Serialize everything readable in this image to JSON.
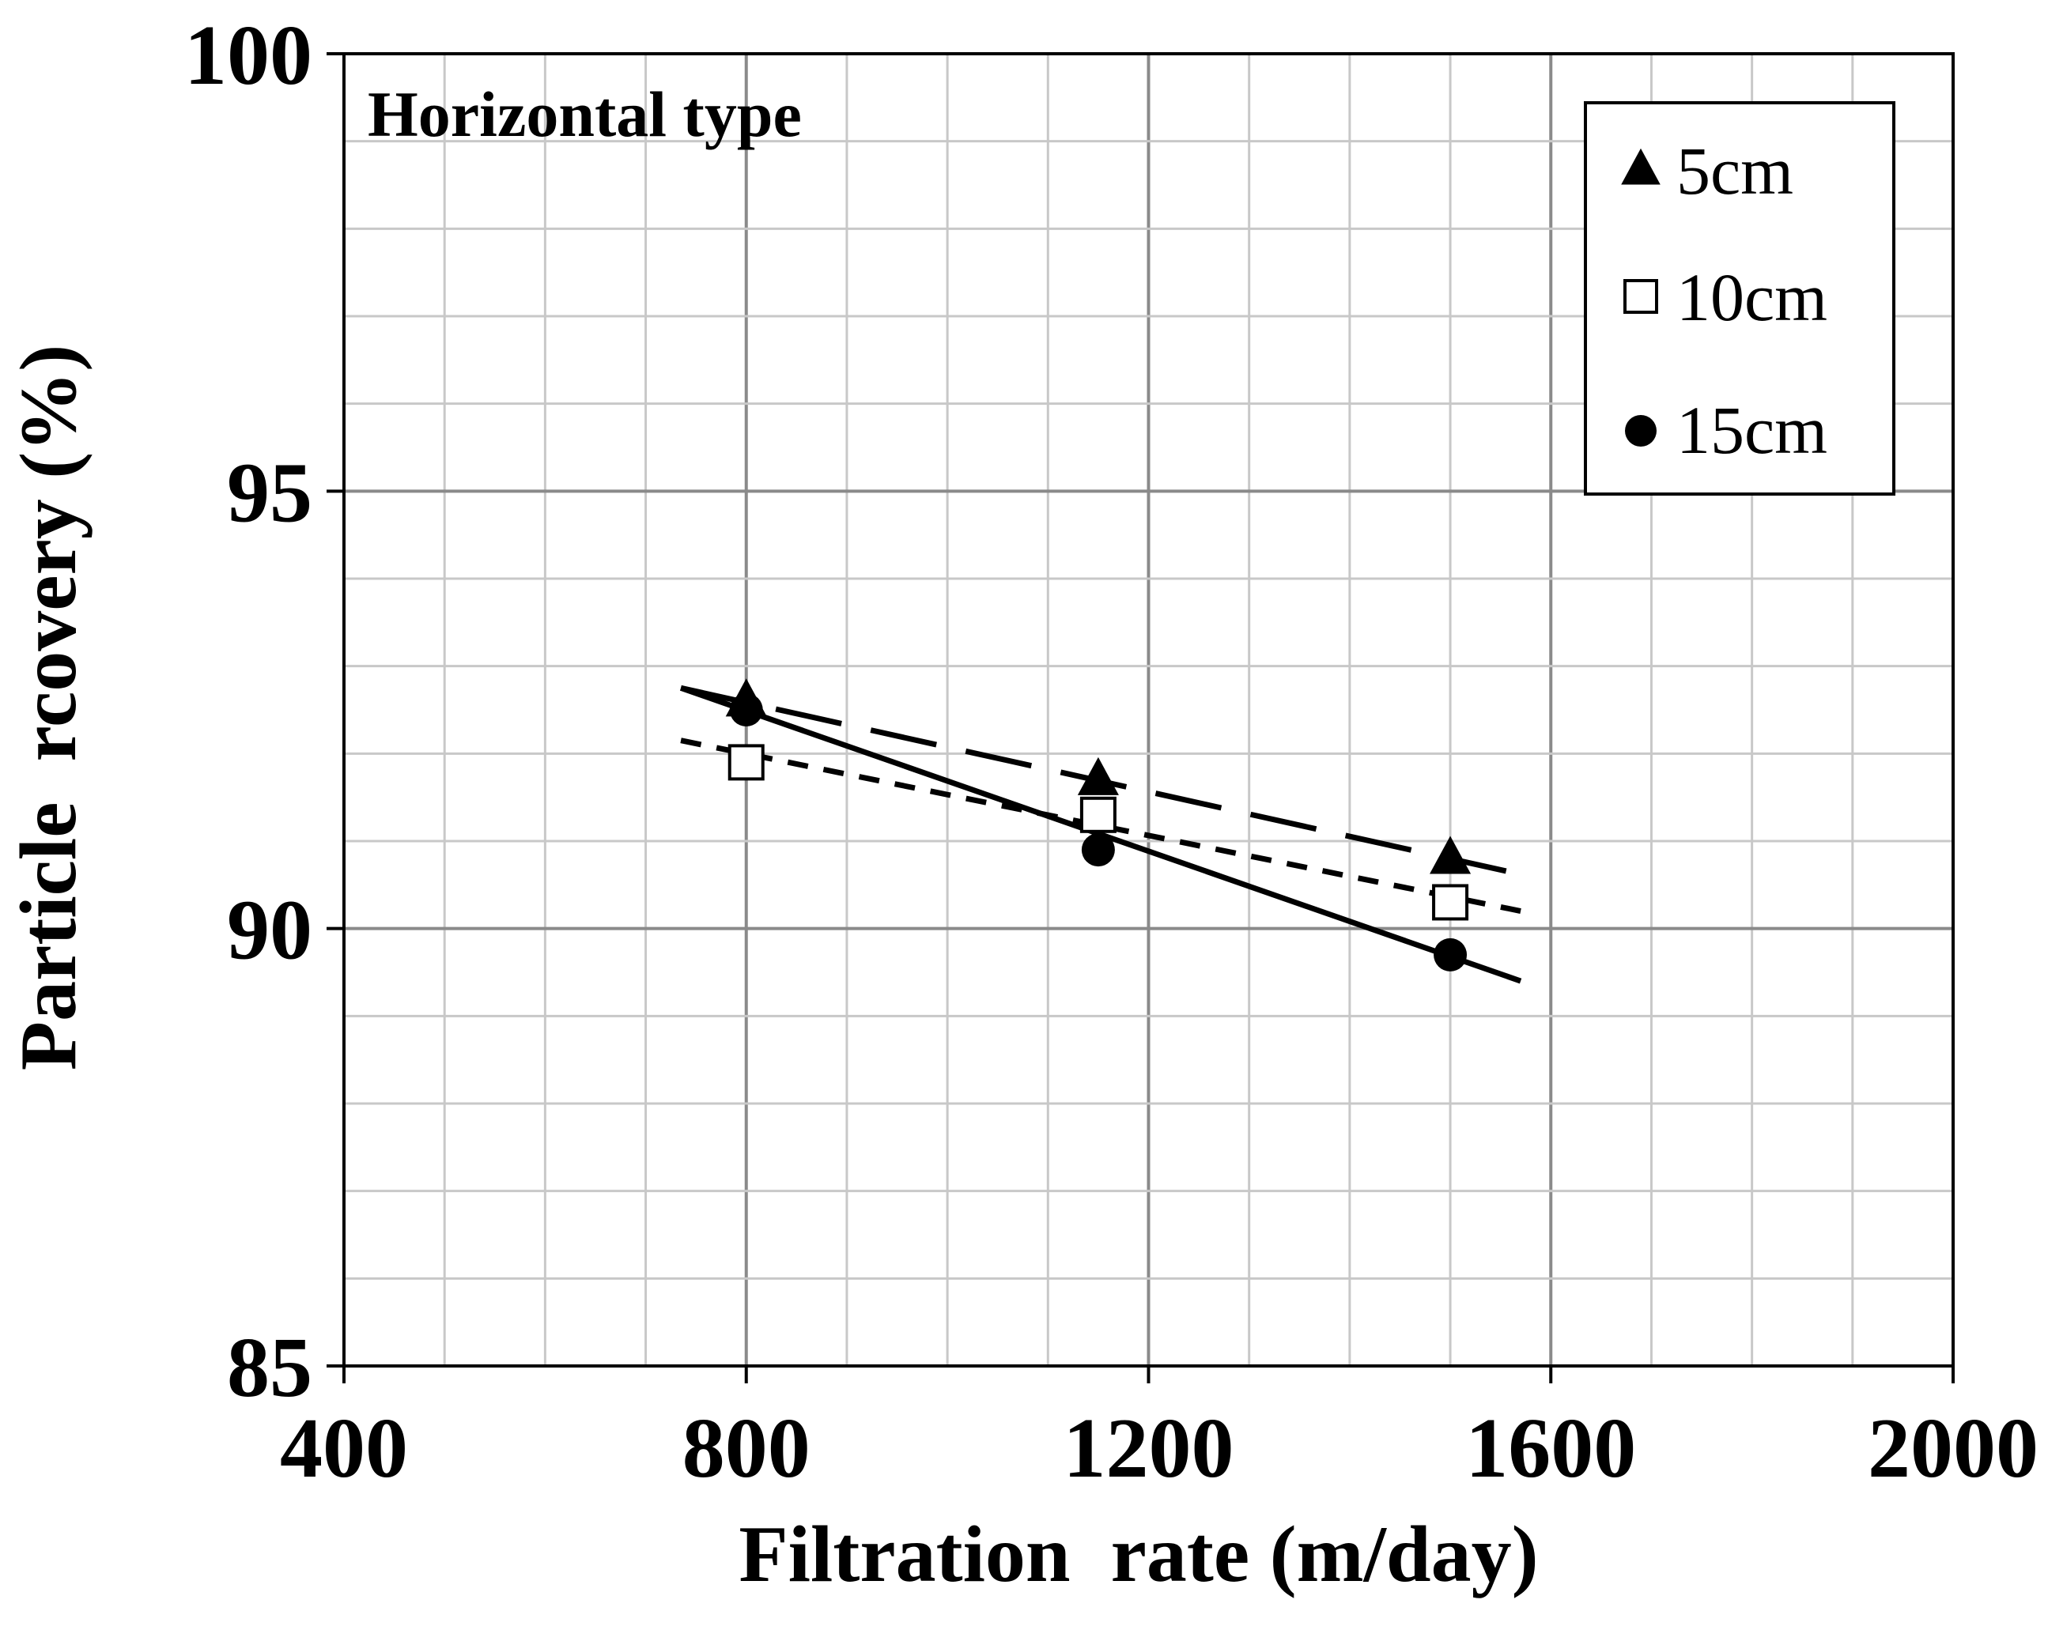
{
  "chart_data": {
    "type": "scatter",
    "panel_label": "Horizontal type",
    "xlabel": "Filtration  rate (m/day)",
    "ylabel": "Particle  rcovery (%)",
    "xlim": [
      400,
      2000
    ],
    "ylim": [
      85,
      100
    ],
    "x_ticks": [
      "400",
      "800",
      "1200",
      "1600",
      "2000"
    ],
    "y_ticks": [
      "85",
      "90",
      "95",
      "100"
    ],
    "grid": true,
    "legend_position": "top-right",
    "series": [
      {
        "name": "5cm",
        "marker": "triangle",
        "line_style": "long-dash",
        "x": [
          800,
          1150,
          1500
        ],
        "y": [
          92.6,
          91.7,
          90.8
        ],
        "trend": {
          "x": [
            735,
            1570
          ],
          "y": [
            92.75,
            90.62
          ]
        }
      },
      {
        "name": "10cm",
        "marker": "square-open",
        "line_style": "short-dash",
        "x": [
          800,
          1150,
          1500
        ],
        "y": [
          91.9,
          91.3,
          90.3
        ],
        "trend": {
          "x": [
            735,
            1570
          ],
          "y": [
            92.15,
            90.2
          ]
        }
      },
      {
        "name": "15cm",
        "marker": "circle",
        "line_style": "solid",
        "x": [
          800,
          1150,
          1500
        ],
        "y": [
          92.5,
          90.9,
          89.7
        ],
        "trend": {
          "x": [
            735,
            1570
          ],
          "y": [
            92.75,
            89.4
          ]
        }
      }
    ]
  }
}
